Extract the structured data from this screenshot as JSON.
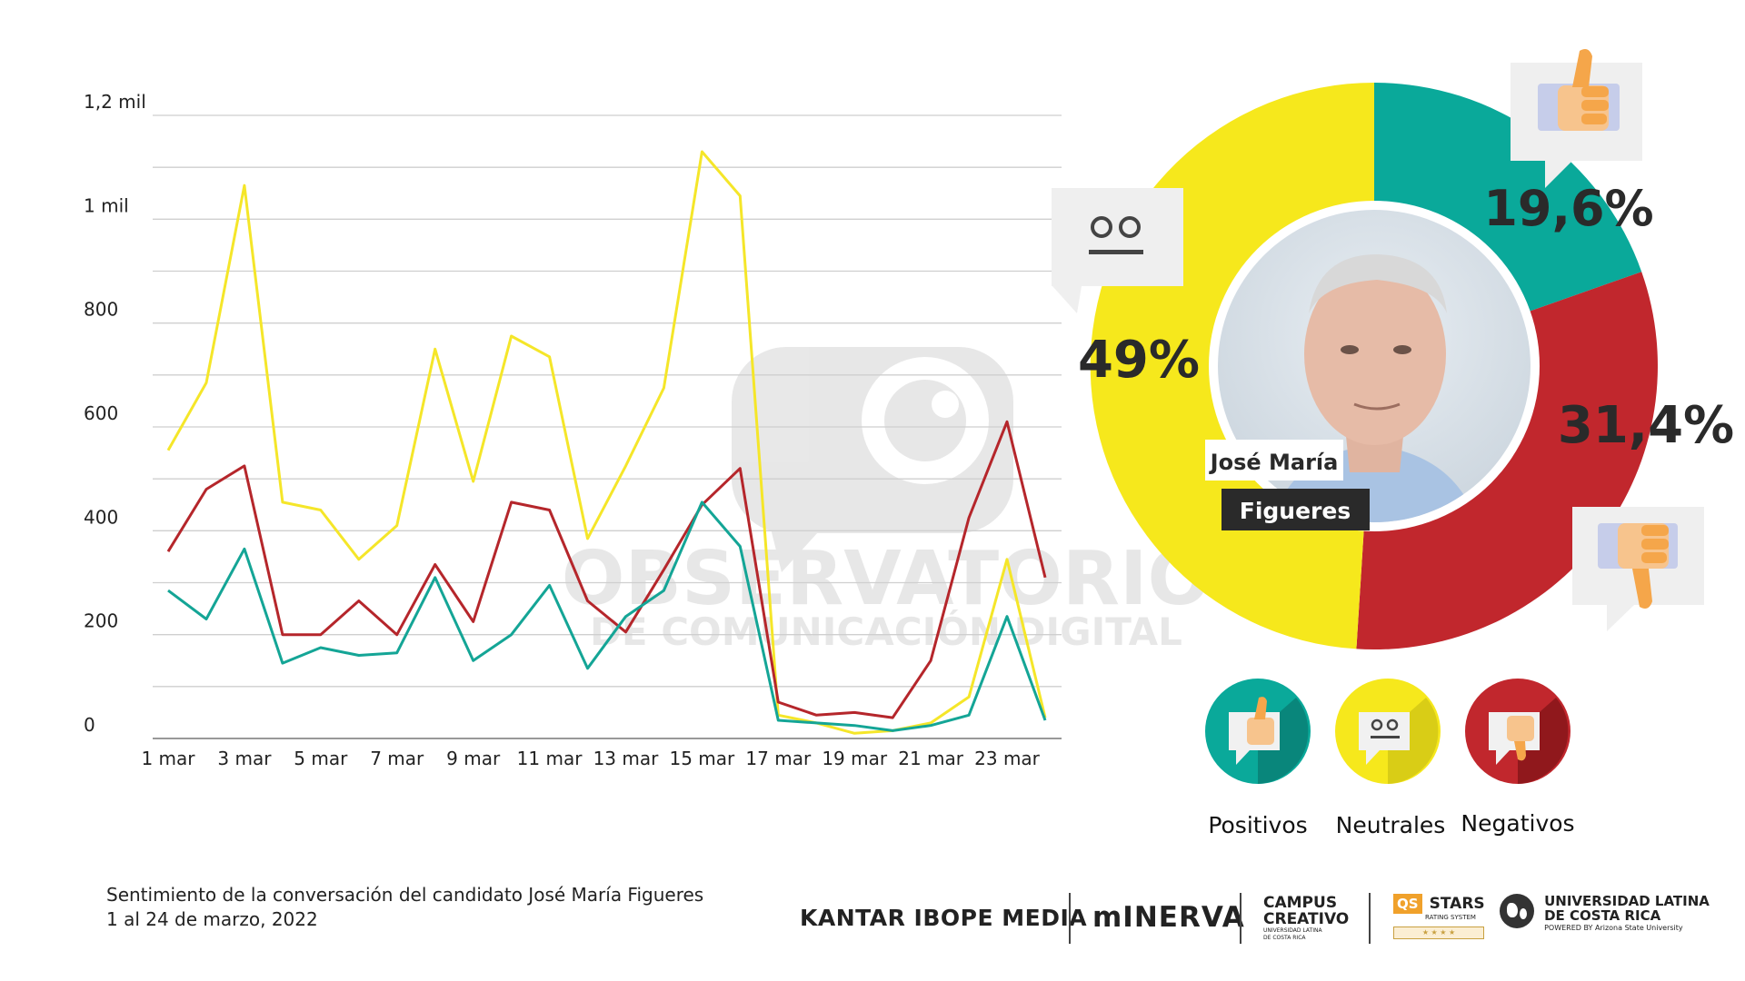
{
  "chart_data": [
    {
      "type": "line",
      "x": [
        "1 mar",
        "2 mar",
        "3 mar",
        "4 mar",
        "5 mar",
        "6 mar",
        "7 mar",
        "8 mar",
        "9 mar",
        "10 mar",
        "11 mar",
        "12 mar",
        "13 mar",
        "14 mar",
        "15 mar",
        "16 mar",
        "17 mar",
        "18 mar",
        "19 mar",
        "20 mar",
        "21 mar",
        "22 mar",
        "23 mar",
        "24 mar"
      ],
      "x_tick_labels": [
        "1 mar",
        "3 mar",
        "5 mar",
        "7 mar",
        "9 mar",
        "11 mar",
        "13 mar",
        "15 mar",
        "17 mar",
        "19 mar",
        "21 mar",
        "23 mar"
      ],
      "y_tick_labels": [
        {
          "value": 0,
          "label": "0"
        },
        {
          "value": 200,
          "label": "200"
        },
        {
          "value": 400,
          "label": "400"
        },
        {
          "value": 600,
          "label": "600"
        },
        {
          "value": 800,
          "label": "800"
        },
        {
          "value": 1000,
          "label": "1 mil"
        },
        {
          "value": 1200,
          "label": "1,2 mil"
        }
      ],
      "ylim": [
        0,
        1200
      ],
      "grid": true,
      "series": [
        {
          "name": "Neutrales",
          "color": "#f5e629",
          "values": [
            555,
            685,
            1065,
            455,
            440,
            345,
            410,
            750,
            495,
            775,
            735,
            385,
            525,
            675,
            1130,
            1045,
            45,
            30,
            10,
            15,
            30,
            80,
            345,
            40
          ]
        },
        {
          "name": "Negativos",
          "color": "#b5262b",
          "values": [
            360,
            480,
            525,
            200,
            200,
            265,
            200,
            335,
            225,
            455,
            440,
            265,
            205,
            325,
            450,
            520,
            70,
            45,
            50,
            40,
            150,
            425,
            610,
            310
          ]
        },
        {
          "name": "Positivos",
          "color": "#14a596",
          "values": [
            285,
            230,
            365,
            145,
            175,
            160,
            165,
            310,
            150,
            200,
            295,
            135,
            235,
            285,
            455,
            370,
            35,
            30,
            25,
            15,
            25,
            45,
            235,
            35
          ]
        }
      ]
    },
    {
      "type": "pie",
      "slices": [
        {
          "name": "Positivos",
          "value": 19.6,
          "label": "19,6%",
          "color": "#0aa99a"
        },
        {
          "name": "Negativos",
          "value": 31.4,
          "label": "31,4%",
          "color": "#c1272d"
        },
        {
          "name": "Neutrales",
          "value": 49.0,
          "label": "49%",
          "color": "#f6e81c"
        }
      ]
    }
  ],
  "candidate": {
    "first_line": "José María",
    "second_line": "Figueres"
  },
  "watermark": {
    "line1": "OBSERVATORIO",
    "line2": "DE COMUNICACIÓN DIGITAL"
  },
  "legend": [
    {
      "label": "Positivos",
      "color": "#0aa99a",
      "icon": "thumbs-up-icon"
    },
    {
      "label": "Neutrales",
      "color": "#f6e81c",
      "icon": "neutral-face-icon"
    },
    {
      "label": "Negativos",
      "color": "#c1272d",
      "icon": "thumbs-down-icon"
    }
  ],
  "caption": {
    "line1": "Sentimiento de la conversación del candidato José María Figueres",
    "line2": "1 al 24 de marzo, 2022"
  },
  "logos": {
    "kantar": "KANTAR IBOPE MEDIA",
    "minerva": "mINERVA",
    "campus_l1": "CAMPUS",
    "campus_l2": "CREATIVO",
    "campus_sub": "UNIVERSIDAD LATINA DE COSTA RICA",
    "qs_badge": "QS",
    "qs_stars": "STARS",
    "qs_sub": "RATING SYSTEM",
    "ulatina_l1": "UNIVERSIDAD LATINA",
    "ulatina_l2": "DE COSTA RICA",
    "ulatina_sub": "POWERED BY Arizona State University"
  }
}
